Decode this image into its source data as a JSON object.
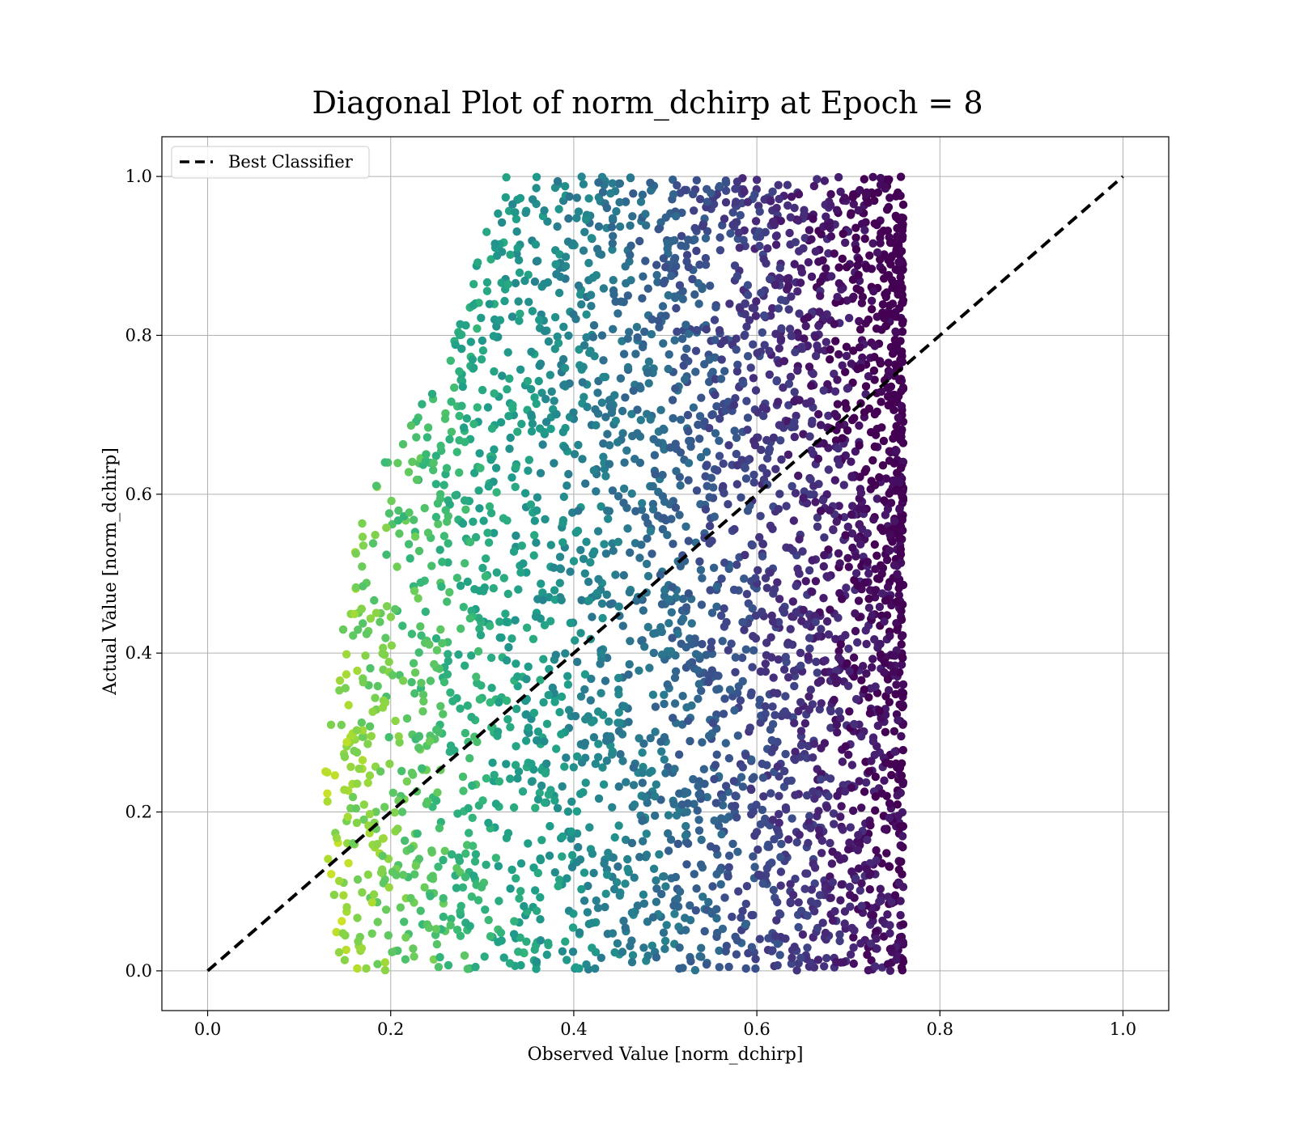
{
  "chart_data": {
    "type": "scatter",
    "title": "Diagonal Plot of norm_dchirp at Epoch = 8",
    "xlabel": "Observed Value [norm_dchirp]",
    "ylabel": "Actual Value [norm_dchirp]",
    "xlim": [
      -0.05,
      1.05
    ],
    "ylim": [
      -0.05,
      1.05
    ],
    "xticks": [
      "0.0",
      "0.2",
      "0.4",
      "0.6",
      "0.8",
      "1.0"
    ],
    "yticks": [
      "0.0",
      "0.2",
      "0.4",
      "0.6",
      "0.8",
      "1.0"
    ],
    "grid": true,
    "legend": {
      "position": "top-left",
      "entries": [
        "Best Classifier"
      ]
    },
    "reference_line": {
      "label": "Best Classifier",
      "x": [
        0.0,
        1.0
      ],
      "y": [
        0.0,
        1.0
      ],
      "style": "dashed",
      "color": "#000000"
    },
    "colormap": "viridis",
    "point_density": {
      "observed_range": [
        0.11,
        0.76
      ],
      "actual_range": [
        0.0,
        1.0
      ],
      "min_observed_by_actual": [
        {
          "actual": 0.0,
          "observed": 0.13
        },
        {
          "actual": 0.2,
          "observed": 0.12
        },
        {
          "actual": 0.4,
          "observed": 0.14
        },
        {
          "actual": 0.6,
          "observed": 0.17
        },
        {
          "actual": 0.8,
          "observed": 0.27
        },
        {
          "actual": 1.0,
          "observed": 0.32
        }
      ],
      "color_trend": "yellow-green at low observed values, transitioning to dark purple at high observed values"
    }
  }
}
